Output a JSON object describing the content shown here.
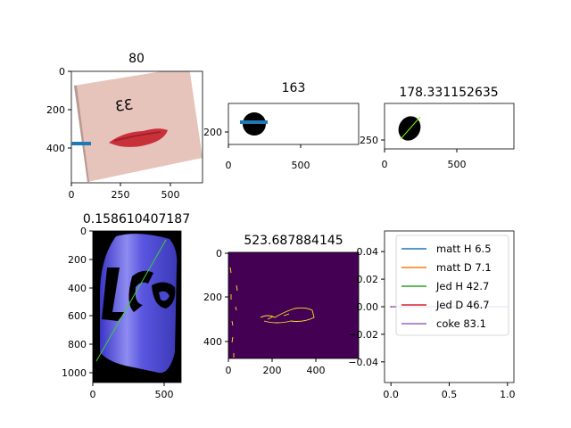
{
  "chart_data": [
    {
      "type": "image",
      "title": "80",
      "image": "photo of skin with a red lip-shaped mark and handwritten text",
      "xticks": [
        0,
        250,
        500
      ],
      "yticks": [
        0,
        200,
        400
      ],
      "xlim": [
        0,
        660
      ],
      "ylim": [
        580,
        0
      ],
      "overlay_line": {
        "color": "#1f77b4",
        "x": [
          0,
          100
        ],
        "y": [
          375,
          375
        ]
      }
    },
    {
      "type": "image",
      "title": "163",
      "image": "black filled ellipse on white",
      "xticks": [
        0,
        500
      ],
      "yticks": [
        200
      ],
      "xlim": [
        0,
        900
      ],
      "ylim": [
        285,
        0
      ],
      "overlay_line": {
        "color": "#1f77b4",
        "x": [
          80,
          270
        ],
        "y": [
          170,
          170
        ]
      }
    },
    {
      "type": "image",
      "title": "178.331152635",
      "image": "black filled ellipse with green diagonal line",
      "xticks": [
        0,
        500
      ],
      "yticks": [
        250
      ],
      "xlim": [
        0,
        890
      ],
      "ylim": [
        320,
        0
      ]
    },
    {
      "type": "image",
      "title": "0.158610407187",
      "image": "blue soda can segmented on black with green diagonal line",
      "xticks": [
        0,
        500
      ],
      "yticks": [
        0,
        200,
        400,
        600,
        800,
        1000
      ],
      "xlim": [
        0,
        620
      ],
      "ylim": [
        1070,
        0
      ]
    },
    {
      "type": "heatmap",
      "title": "523.687884145",
      "image": "dark purple edge map with sparse yellow edges",
      "xticks": [
        0,
        200,
        400
      ],
      "yticks": [
        0,
        200,
        400
      ],
      "xlim": [
        0,
        545
      ],
      "ylim": [
        475,
        0
      ]
    },
    {
      "type": "line",
      "title": "",
      "xticks": [
        "0.0",
        "0.5",
        "1.0"
      ],
      "yticks": [
        "0.04",
        "0.02",
        "0.00",
        "−0.02",
        "−0.04"
      ],
      "xlim": [
        -0.055,
        1.055
      ],
      "ylim": [
        -0.055,
        0.055
      ],
      "legend_loc": "upper right",
      "series": [
        {
          "name": "matt H 6.5",
          "color": "#1f77b4",
          "x": [
            0
          ],
          "y": [
            0
          ]
        },
        {
          "name": "matt D 7.1",
          "color": "#ff7f0e",
          "x": [
            0
          ],
          "y": [
            0
          ]
        },
        {
          "name": "Jed H 42.7",
          "color": "#2ca02c",
          "x": [
            0
          ],
          "y": [
            0
          ]
        },
        {
          "name": "Jed D 46.7",
          "color": "#d62728",
          "x": [
            0
          ],
          "y": [
            0
          ]
        },
        {
          "name": "coke 83.1",
          "color": "#9467bd",
          "x": [
            0,
            1
          ],
          "y": [
            0,
            0
          ]
        }
      ]
    }
  ]
}
